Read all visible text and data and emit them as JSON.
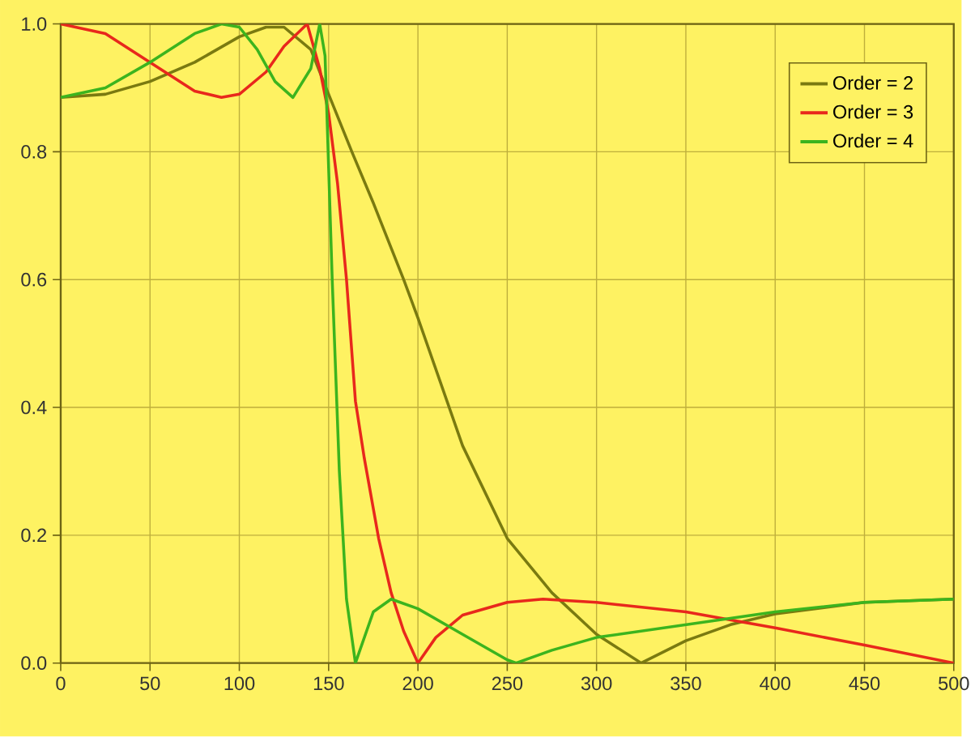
{
  "chart_data": {
    "type": "line",
    "xlim": [
      0,
      500
    ],
    "ylim": [
      0,
      1
    ],
    "xticks": [
      0,
      50,
      100,
      150,
      200,
      250,
      300,
      350,
      400,
      450,
      500
    ],
    "yticks": [
      {
        "value": 0,
        "label": "0.0"
      },
      0.2,
      0.4,
      0.6,
      0.8,
      {
        "value": 1,
        "label": "1.0"
      }
    ],
    "grid": true,
    "legend": "top right",
    "marker": "none",
    "line_style": "solid",
    "series": [
      {
        "name": "Order = 2",
        "color": "#7a7a10",
        "x": [
          0,
          25,
          50,
          75,
          100,
          115,
          125,
          140,
          150,
          163,
          175,
          192,
          200,
          225,
          250,
          275,
          300,
          325,
          350,
          375,
          400,
          450,
          500
        ],
        "values": [
          0.885,
          0.89,
          0.91,
          0.94,
          0.98,
          0.995,
          0.995,
          0.96,
          0.89,
          0.8,
          0.72,
          0.6,
          0.54,
          0.34,
          0.195,
          0.11,
          0.045,
          0,
          0.035,
          0.06,
          0.077,
          0.095,
          0.1
        ]
      },
      {
        "name": "Order = 3",
        "color": "#e8281c",
        "x": [
          0,
          25,
          50,
          75,
          90,
          100,
          115,
          125,
          138,
          145,
          150,
          155,
          160,
          165,
          170,
          178,
          185,
          192,
          200,
          210,
          225,
          250,
          270,
          300,
          350,
          400,
          450,
          500
        ],
        "values": [
          1,
          0.985,
          0.94,
          0.895,
          0.885,
          0.89,
          0.925,
          0.965,
          1,
          0.93,
          0.86,
          0.75,
          0.6,
          0.41,
          0.32,
          0.195,
          0.11,
          0.05,
          0,
          0.04,
          0.075,
          0.095,
          0.1,
          0.095,
          0.08,
          0.055,
          0.028,
          0
        ]
      },
      {
        "name": "Order = 4",
        "color": "#3cb41e",
        "x": [
          0,
          25,
          50,
          75,
          90,
          100,
          110,
          120,
          130,
          140,
          145,
          148,
          152,
          156,
          160,
          165,
          175,
          185,
          200,
          225,
          250,
          255,
          275,
          300,
          350,
          400,
          450,
          500
        ],
        "values": [
          0.885,
          0.9,
          0.94,
          0.985,
          1,
          0.995,
          0.96,
          0.91,
          0.885,
          0.93,
          1,
          0.95,
          0.6,
          0.3,
          0.1,
          0,
          0.08,
          0.1,
          0.085,
          0.045,
          0.005,
          0,
          0.02,
          0.04,
          0.06,
          0.08,
          0.095,
          0.1
        ]
      }
    ]
  }
}
